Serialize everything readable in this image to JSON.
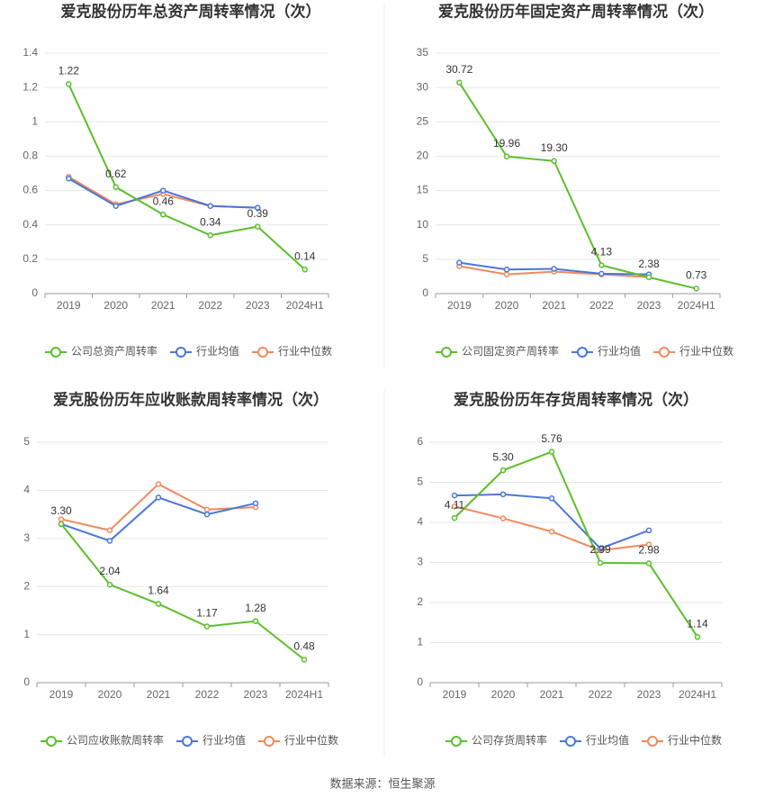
{
  "chart_data": [
    {
      "type": "line",
      "title": "爱克股份历年总资产周转率情况（次）",
      "categories": [
        "2019",
        "2020",
        "2021",
        "2022",
        "2023",
        "2024H1"
      ],
      "ylim": [
        0,
        1.4
      ],
      "yticks": [
        0,
        0.2,
        0.4,
        0.6,
        0.8,
        1,
        1.2,
        1.4
      ],
      "grid": true,
      "series": [
        {
          "name": "公司总资产周转率",
          "color": "#5bbf2b",
          "values": [
            1.22,
            0.62,
            0.46,
            0.34,
            0.39,
            0.14
          ],
          "value_labels": [
            "1.22",
            "0.62",
            "0.46",
            "0.34",
            "0.39",
            "0.14"
          ]
        },
        {
          "name": "行业均值",
          "color": "#4a77d8",
          "values": [
            0.67,
            0.51,
            0.6,
            0.51,
            0.5,
            null
          ]
        },
        {
          "name": "行业中位数",
          "color": "#f08a5d",
          "values": [
            0.68,
            0.52,
            0.58,
            0.51,
            0.5,
            null
          ]
        }
      ]
    },
    {
      "type": "line",
      "title": "爱克股份历年固定资产周转率情况（次）",
      "categories": [
        "2019",
        "2020",
        "2021",
        "2022",
        "2023",
        "2024H1"
      ],
      "ylim": [
        0,
        35
      ],
      "yticks": [
        0,
        5,
        10,
        15,
        20,
        25,
        30,
        35
      ],
      "grid": true,
      "series": [
        {
          "name": "公司固定资产周转率",
          "color": "#5bbf2b",
          "values": [
            30.72,
            19.96,
            19.3,
            4.13,
            2.38,
            0.73
          ],
          "value_labels": [
            "30.72",
            "19.96",
            "19.30",
            "4.13",
            "2.38",
            "0.73"
          ]
        },
        {
          "name": "行业均值",
          "color": "#4a77d8",
          "values": [
            4.5,
            3.5,
            3.6,
            2.9,
            2.8,
            null
          ]
        },
        {
          "name": "行业中位数",
          "color": "#f08a5d",
          "values": [
            4.0,
            2.8,
            3.2,
            2.8,
            2.4,
            null
          ]
        }
      ]
    },
    {
      "type": "line",
      "title": "爱克股份历年应收账款周转率情况（次）",
      "categories": [
        "2019",
        "2020",
        "2021",
        "2022",
        "2023",
        "2024H1"
      ],
      "ylim": [
        0,
        5
      ],
      "yticks": [
        0,
        1,
        2,
        3,
        4,
        5
      ],
      "grid": true,
      "series": [
        {
          "name": "公司应收账款周转率",
          "color": "#5bbf2b",
          "values": [
            3.3,
            2.04,
            1.64,
            1.17,
            1.28,
            0.48
          ],
          "value_labels": [
            "3.30",
            "2.04",
            "1.64",
            "1.17",
            "1.28",
            "0.48"
          ]
        },
        {
          "name": "行业均值",
          "color": "#4a77d8",
          "values": [
            3.3,
            2.95,
            3.85,
            3.5,
            3.73,
            null
          ]
        },
        {
          "name": "行业中位数",
          "color": "#f08a5d",
          "values": [
            3.4,
            3.17,
            4.13,
            3.6,
            3.65,
            null
          ]
        }
      ]
    },
    {
      "type": "line",
      "title": "爱克股份历年存货周转率情况（次）",
      "categories": [
        "2019",
        "2020",
        "2021",
        "2022",
        "2023",
        "2024H1"
      ],
      "ylim": [
        0,
        6
      ],
      "yticks": [
        0,
        1,
        2,
        3,
        4,
        5,
        6
      ],
      "grid": true,
      "series": [
        {
          "name": "公司存货周转率",
          "color": "#5bbf2b",
          "values": [
            4.11,
            5.3,
            5.76,
            2.99,
            2.98,
            1.14
          ],
          "value_labels": [
            "4.11",
            "5.30",
            "5.76",
            "2.99",
            "2.98",
            "1.14"
          ]
        },
        {
          "name": "行业均值",
          "color": "#4a77d8",
          "values": [
            4.67,
            4.7,
            4.6,
            3.35,
            3.8,
            null
          ]
        },
        {
          "name": "行业中位数",
          "color": "#f08a5d",
          "values": [
            4.4,
            4.1,
            3.77,
            3.3,
            3.45,
            null
          ]
        }
      ]
    }
  ],
  "source": "数据来源：恒生聚源"
}
